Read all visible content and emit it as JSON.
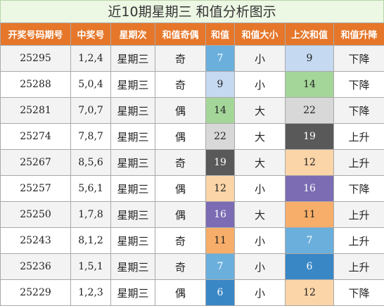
{
  "title": "近10期星期三 和值分析图示",
  "headers": [
    "开奖号码期号",
    "中奖号",
    "星期次",
    "和值奇偶",
    "和值",
    "和值大小",
    "上次和值",
    "和值升降"
  ],
  "colors": {
    "6": "#3a87c6",
    "7": "#6bafdc",
    "9": "#c5d9f0",
    "11": "#f7ae6a",
    "12": "#fbd4a8",
    "14": "#a4d699",
    "16": "#7b6cb4",
    "19": "#595959",
    "22": "#d8d8d8"
  },
  "light_text": [
    "6",
    "7",
    "16",
    "19"
  ],
  "rows": [
    {
      "issue": "25295",
      "numbers": "1,2,4",
      "weekday": "星期三",
      "parity": "奇",
      "sum": "7",
      "size": "小",
      "prev_sum": "9",
      "trend": "下降"
    },
    {
      "issue": "25288",
      "numbers": "5,0,4",
      "weekday": "星期三",
      "parity": "奇",
      "sum": "9",
      "size": "小",
      "prev_sum": "14",
      "trend": "下降"
    },
    {
      "issue": "25281",
      "numbers": "7,0,7",
      "weekday": "星期三",
      "parity": "偶",
      "sum": "14",
      "size": "大",
      "prev_sum": "22",
      "trend": "下降"
    },
    {
      "issue": "25274",
      "numbers": "7,8,7",
      "weekday": "星期三",
      "parity": "偶",
      "sum": "22",
      "size": "大",
      "prev_sum": "19",
      "trend": "上升"
    },
    {
      "issue": "25267",
      "numbers": "8,5,6",
      "weekday": "星期三",
      "parity": "奇",
      "sum": "19",
      "size": "大",
      "prev_sum": "12",
      "trend": "上升"
    },
    {
      "issue": "25257",
      "numbers": "5,6,1",
      "weekday": "星期三",
      "parity": "偶",
      "sum": "12",
      "size": "小",
      "prev_sum": "16",
      "trend": "下降"
    },
    {
      "issue": "25250",
      "numbers": "1,7,8",
      "weekday": "星期三",
      "parity": "偶",
      "sum": "16",
      "size": "大",
      "prev_sum": "11",
      "trend": "上升"
    },
    {
      "issue": "25243",
      "numbers": "8,1,2",
      "weekday": "星期三",
      "parity": "奇",
      "sum": "11",
      "size": "小",
      "prev_sum": "7",
      "trend": "上升"
    },
    {
      "issue": "25236",
      "numbers": "1,5,1",
      "weekday": "星期三",
      "parity": "奇",
      "sum": "7",
      "size": "小",
      "prev_sum": "6",
      "trend": "上升"
    },
    {
      "issue": "25229",
      "numbers": "1,2,3",
      "weekday": "星期三",
      "parity": "偶",
      "sum": "6",
      "size": "小",
      "prev_sum": "12",
      "trend": "下降"
    }
  ]
}
